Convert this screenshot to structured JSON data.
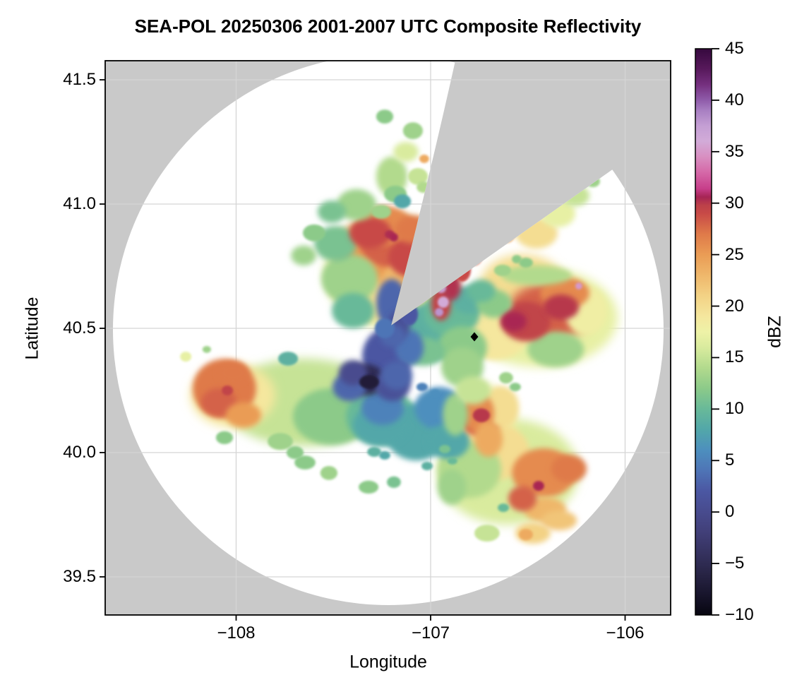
{
  "title": "SEA-POL 20250306 2001-2007 UTC Composite Reflectivity",
  "axes": {
    "xlabel": "Longitude",
    "ylabel": "Latitude",
    "x_tick_labels": [
      "−108",
      "−107",
      "−106"
    ],
    "x_tick_values": [
      -108,
      -107,
      -106
    ],
    "y_tick_labels": [
      "41.5",
      "41.0",
      "40.5",
      "40.0",
      "39.5"
    ],
    "y_tick_values": [
      41.5,
      41.0,
      40.5,
      40.0,
      39.5
    ],
    "xlim": [
      -108.67,
      -105.77
    ],
    "ylim": [
      39.35,
      41.58
    ],
    "grid": true
  },
  "colorbar": {
    "label": "dBZ",
    "tick_labels": [
      "45",
      "40",
      "35",
      "30",
      "25",
      "20",
      "15",
      "10",
      "5",
      "0",
      "−5",
      "−10"
    ],
    "tick_values": [
      45,
      40,
      35,
      30,
      25,
      20,
      15,
      10,
      5,
      0,
      -5,
      -10
    ],
    "vmin": -10,
    "vmax": 45
  },
  "colors": {
    "background_outside_coverage": "#c9c9c9",
    "coverage_area": "#ffffff",
    "gridline": "#d5d5d5",
    "frame": "#000000",
    "marker": "#000000"
  },
  "chart_data": {
    "type": "heatmap",
    "subtype": "radar_composite_reflectivity_ppi",
    "title": "SEA-POL 20250306 2001-2007 UTC Composite Reflectivity",
    "units": "dBZ",
    "radar": {
      "name": "SEA-POL",
      "date": "20250306",
      "time_utc": "2001-2007",
      "center_lon": -107.218,
      "center_lat": 40.494,
      "max_range_km": 120,
      "blocked_sector_azimuth_deg": [
        13,
        55
      ]
    },
    "marker": {
      "lon": -106.775,
      "lat": 40.466,
      "symbol": "diamond",
      "color": "#000000"
    },
    "colormap_stops": [
      [
        -10,
        "#070610"
      ],
      [
        -8,
        "#18152c"
      ],
      [
        -6,
        "#282445"
      ],
      [
        -4,
        "#35325f"
      ],
      [
        -2,
        "#413f78"
      ],
      [
        0,
        "#484b8e"
      ],
      [
        2,
        "#4b57a2"
      ],
      [
        4,
        "#4e74b6"
      ],
      [
        6,
        "#4d8fbe"
      ],
      [
        8,
        "#52a7a9"
      ],
      [
        10,
        "#68b999"
      ],
      [
        12,
        "#8cca89"
      ],
      [
        14,
        "#b2da8d"
      ],
      [
        16,
        "#d9eb9e"
      ],
      [
        17.5,
        "#eef2a7"
      ],
      [
        19,
        "#f5e79e"
      ],
      [
        21,
        "#f3d285"
      ],
      [
        23,
        "#efb76b"
      ],
      [
        25,
        "#ea9c55"
      ],
      [
        27,
        "#df7a49"
      ],
      [
        29,
        "#c84a47"
      ],
      [
        29.8,
        "#bc4049"
      ],
      [
        30.6,
        "#a62455"
      ],
      [
        31.4,
        "#c73e8a"
      ],
      [
        33,
        "#d569a8"
      ],
      [
        34.5,
        "#d88fc1"
      ],
      [
        36,
        "#d2abd8"
      ],
      [
        37.5,
        "#c49fd4"
      ],
      [
        39,
        "#a87fc2"
      ],
      [
        40,
        "#8f5caa"
      ],
      [
        41.5,
        "#75307f"
      ],
      [
        43,
        "#58195c"
      ],
      [
        45,
        "#36093e"
      ]
    ],
    "echo_fields": [
      "lon",
      "lat",
      "dbz",
      "r_lon_deg",
      "r_lat_deg"
    ],
    "echo_regions": [
      [
        -107.2,
        40.727,
        17,
        0.345,
        0.227
      ],
      [
        -107.236,
        40.685,
        20,
        0.254,
        0.156
      ],
      [
        -107.254,
        40.813,
        25,
        0.236,
        0.128
      ],
      [
        -107.181,
        40.841,
        28,
        0.181,
        0.099
      ],
      [
        -107.091,
        40.784,
        29,
        0.127,
        0.08
      ],
      [
        -107.309,
        40.884,
        29,
        0.109,
        0.063
      ],
      [
        -107.236,
        40.912,
        26,
        0.145,
        0.08
      ],
      [
        -107.127,
        40.685,
        23,
        0.127,
        0.085
      ],
      [
        -107.091,
        40.898,
        27,
        0.091,
        0.057
      ],
      [
        -107.189,
        40.866,
        30.5,
        0.022,
        0.017
      ],
      [
        -107.211,
        40.878,
        30.3,
        0.025,
        0.017
      ],
      [
        -107.417,
        40.699,
        13,
        0.145,
        0.099
      ],
      [
        -107.49,
        40.841,
        11,
        0.109,
        0.071
      ],
      [
        -107.381,
        40.997,
        13,
        0.102,
        0.063
      ],
      [
        -107.2,
        41.111,
        14,
        0.08,
        0.08
      ],
      [
        -107.127,
        41.21,
        16,
        0.065,
        0.04
      ],
      [
        -107.091,
        41.295,
        13,
        0.051,
        0.034
      ],
      [
        -107.236,
        41.352,
        12,
        0.044,
        0.028
      ],
      [
        -107.508,
        40.969,
        11,
        0.073,
        0.045
      ],
      [
        -107.599,
        40.884,
        12,
        0.058,
        0.034
      ],
      [
        -107.653,
        40.793,
        13,
        0.065,
        0.04
      ],
      [
        -107.399,
        40.571,
        10,
        0.109,
        0.071
      ],
      [
        -107.2,
        40.599,
        3,
        0.08,
        0.099
      ],
      [
        -107.163,
        40.514,
        1,
        0.058,
        0.057
      ],
      [
        -107.236,
        40.5,
        4,
        0.051,
        0.04
      ],
      [
        -107.145,
        41.011,
        8,
        0.044,
        0.028
      ],
      [
        -107.109,
        40.557,
        2,
        0.044,
        0.045
      ],
      [
        -107.036,
        41.068,
        14,
        0.036,
        0.023
      ],
      [
        -107.033,
        41.182,
        24,
        0.025,
        0.017
      ],
      [
        -107.065,
        41.111,
        15,
        0.051,
        0.034
      ],
      [
        -107.181,
        41.04,
        12,
        0.058,
        0.034
      ],
      [
        -107.254,
        40.969,
        13,
        0.051,
        0.028
      ],
      [
        -107.653,
        40.202,
        15,
        0.417,
        0.176
      ],
      [
        -108.016,
        40.23,
        19,
        0.218,
        0.128
      ],
      [
        -108.06,
        40.258,
        27,
        0.163,
        0.119
      ],
      [
        -108.089,
        40.202,
        28,
        0.091,
        0.057
      ],
      [
        -108.016,
        40.321,
        27,
        0.08,
        0.045
      ],
      [
        -107.962,
        40.151,
        25,
        0.091,
        0.051
      ],
      [
        -108.045,
        40.25,
        29.5,
        0.029,
        0.02
      ],
      [
        -108.259,
        40.386,
        17,
        0.029,
        0.02
      ],
      [
        -108.151,
        40.415,
        13,
        0.022,
        0.014
      ],
      [
        -107.508,
        40.145,
        12,
        0.2,
        0.114
      ],
      [
        -107.254,
        40.145,
        10,
        0.181,
        0.114
      ],
      [
        -107.073,
        40.082,
        8,
        0.163,
        0.114
      ],
      [
        -106.956,
        40.179,
        6,
        0.127,
        0.085
      ],
      [
        -106.909,
        40.045,
        8,
        0.109,
        0.071
      ],
      [
        -108.06,
        40.06,
        12,
        0.044,
        0.026
      ],
      [
        -107.523,
        39.918,
        13,
        0.044,
        0.028
      ],
      [
        -107.319,
        39.861,
        12,
        0.051,
        0.026
      ],
      [
        -107.189,
        39.881,
        11,
        0.036,
        0.023
      ],
      [
        -107.773,
        40.045,
        13,
        0.065,
        0.034
      ],
      [
        -107.697,
        40.0,
        12,
        0.044,
        0.026
      ],
      [
        -107.018,
        39.946,
        9,
        0.029,
        0.017
      ],
      [
        -107.29,
        40.003,
        9,
        0.036,
        0.02
      ],
      [
        -107.236,
        39.989,
        8,
        0.029,
        0.017
      ],
      [
        -107.733,
        40.378,
        9,
        0.051,
        0.028
      ],
      [
        -107.646,
        39.96,
        12,
        0.054,
        0.028
      ],
      [
        -107.225,
        40.386,
        2,
        0.127,
        0.114
      ],
      [
        -107.334,
        40.293,
        -5,
        0.098,
        0.063
      ],
      [
        -107.316,
        40.284,
        -7,
        0.051,
        0.028
      ],
      [
        -107.399,
        40.321,
        0,
        0.073,
        0.051
      ],
      [
        -107.196,
        40.27,
        1,
        0.091,
        0.063
      ],
      [
        -107.417,
        40.264,
        3,
        0.087,
        0.057
      ],
      [
        -107.247,
        40.182,
        5,
        0.109,
        0.071
      ],
      [
        -107.174,
        40.31,
        3,
        0.08,
        0.057
      ],
      [
        -107.109,
        40.423,
        4,
        0.073,
        0.071
      ],
      [
        -107.196,
        40.469,
        3,
        0.065,
        0.045
      ],
      [
        -107.254,
        40.111,
        8,
        0.145,
        0.085
      ],
      [
        -107.044,
        40.264,
        5,
        0.029,
        0.017
      ],
      [
        -106.978,
        40.241,
        6,
        0.025,
        0.014
      ],
      [
        -107.0,
        40.486,
        9,
        0.163,
        0.114
      ],
      [
        -106.891,
        40.565,
        10,
        0.145,
        0.099
      ],
      [
        -107.036,
        40.406,
        11,
        0.109,
        0.057
      ],
      [
        -106.837,
        40.423,
        12,
        0.127,
        0.085
      ],
      [
        -106.837,
        40.344,
        13,
        0.109,
        0.08
      ],
      [
        -106.782,
        40.25,
        15,
        0.091,
        0.057
      ],
      [
        -106.437,
        40.543,
        17,
        0.399,
        0.199
      ],
      [
        -106.528,
        40.67,
        20,
        0.218,
        0.128
      ],
      [
        -106.673,
        40.486,
        19,
        0.181,
        0.114
      ],
      [
        -106.383,
        40.571,
        28,
        0.218,
        0.114
      ],
      [
        -106.51,
        40.528,
        29.5,
        0.127,
        0.08
      ],
      [
        -106.572,
        40.528,
        30.5,
        0.065,
        0.04
      ],
      [
        -106.329,
        40.585,
        30,
        0.091,
        0.051
      ],
      [
        -106.31,
        40.642,
        26,
        0.127,
        0.063
      ],
      [
        -106.201,
        40.571,
        18,
        0.109,
        0.099
      ],
      [
        -106.455,
        40.713,
        14,
        0.181,
        0.04
      ],
      [
        -106.946,
        40.599,
        29.5,
        0.051,
        0.068
      ],
      [
        -106.891,
        40.67,
        30.2,
        0.047,
        0.057
      ],
      [
        -106.837,
        40.736,
        29,
        0.044,
        0.048
      ],
      [
        -106.775,
        40.798,
        28,
        0.044,
        0.045
      ],
      [
        -106.691,
        40.855,
        26,
        0.044,
        0.043
      ],
      [
        -106.608,
        40.884,
        24,
        0.044,
        0.04
      ],
      [
        -106.935,
        40.605,
        36,
        0.029,
        0.023
      ],
      [
        -106.956,
        40.565,
        38,
        0.022,
        0.017
      ],
      [
        -106.946,
        40.662,
        37,
        0.025,
        0.02
      ],
      [
        -106.8,
        40.614,
        9,
        0.091,
        0.057
      ],
      [
        -106.739,
        40.651,
        10,
        0.073,
        0.045
      ],
      [
        -106.673,
        40.599,
        12,
        0.091,
        0.057
      ],
      [
        -106.456,
        40.884,
        20,
        0.109,
        0.063
      ],
      [
        -106.347,
        40.963,
        17,
        0.091,
        0.057
      ],
      [
        -106.256,
        41.034,
        15,
        0.073,
        0.043
      ],
      [
        -106.165,
        41.091,
        13,
        0.036,
        0.023
      ],
      [
        -106.557,
        40.778,
        12,
        0.025,
        0.017
      ],
      [
        -106.357,
        40.415,
        13,
        0.145,
        0.071
      ],
      [
        -106.238,
        40.67,
        35,
        0.018,
        0.014
      ],
      [
        -106.63,
        40.733,
        13,
        0.044,
        0.023
      ],
      [
        -106.51,
        40.764,
        12,
        0.036,
        0.02
      ],
      [
        -106.728,
        40.116,
        18,
        0.163,
        0.156
      ],
      [
        -106.753,
        40.159,
        26,
        0.08,
        0.08
      ],
      [
        -106.702,
        40.054,
        24,
        0.073,
        0.071
      ],
      [
        -106.637,
        40.182,
        20,
        0.091,
        0.085
      ],
      [
        -106.873,
        40.153,
        13,
        0.065,
        0.085
      ],
      [
        -106.612,
        40.301,
        13,
        0.036,
        0.023
      ],
      [
        -106.565,
        40.264,
        12,
        0.029,
        0.017
      ],
      [
        -106.601,
        39.923,
        16,
        0.363,
        0.213
      ],
      [
        -106.746,
        40.139,
        28,
        0.109,
        0.071
      ],
      [
        -106.739,
        40.15,
        30,
        0.044,
        0.028
      ],
      [
        -106.8,
        39.932,
        14,
        0.163,
        0.114
      ],
      [
        -106.419,
        39.918,
        26,
        0.163,
        0.099
      ],
      [
        -106.445,
        39.866,
        30.5,
        0.029,
        0.02
      ],
      [
        -106.289,
        39.935,
        27,
        0.091,
        0.057
      ],
      [
        -106.528,
        39.815,
        28,
        0.073,
        0.051
      ],
      [
        -106.412,
        39.77,
        23,
        0.109,
        0.051
      ],
      [
        -106.339,
        39.727,
        22,
        0.091,
        0.04
      ],
      [
        -106.474,
        39.676,
        21,
        0.091,
        0.043
      ],
      [
        -106.51,
        39.67,
        24,
        0.036,
        0.023
      ],
      [
        -106.626,
        39.778,
        10,
        0.029,
        0.017
      ],
      [
        -106.927,
        40.014,
        11,
        0.029,
        0.017
      ],
      [
        -106.888,
        39.966,
        10,
        0.025,
        0.014
      ],
      [
        -106.673,
        40.003,
        20,
        0.181,
        0.114
      ],
      [
        -106.891,
        39.861,
        13,
        0.073,
        0.071
      ],
      [
        -106.71,
        39.676,
        15,
        0.065,
        0.034
      ]
    ]
  }
}
